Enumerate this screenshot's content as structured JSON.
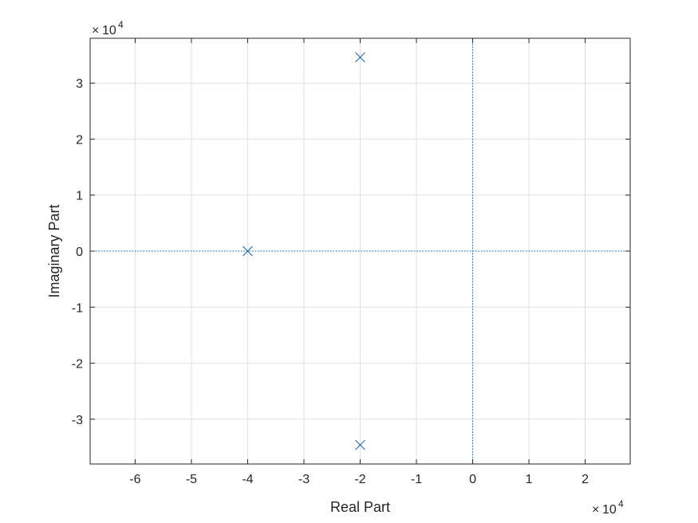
{
  "chart_data": {
    "type": "scatter",
    "title": "",
    "xlabel": "Real Part",
    "ylabel": "Imaginary Part",
    "x_exponent_label": {
      "times": "×",
      "base": "10",
      "power": "4"
    },
    "y_exponent_label": {
      "times": "×",
      "base": "10",
      "power": "4"
    },
    "xlim": [
      -6.8,
      2.8
    ],
    "ylim": [
      -3.8,
      3.8
    ],
    "x_ticks": [
      -6,
      -5,
      -4,
      -3,
      -2,
      -1,
      0,
      1,
      2
    ],
    "y_ticks": [
      -3,
      -2,
      -1,
      0,
      1,
      2,
      3
    ],
    "x_tick_labels": [
      "-6",
      "-5",
      "-4",
      "-3",
      "-2",
      "-1",
      "0",
      "1",
      "2"
    ],
    "y_tick_labels": [
      "-3",
      "-2",
      "-1",
      "0",
      "1",
      "2",
      "3"
    ],
    "grid": true,
    "scale_factor": 10000,
    "reference_lines": {
      "x": 0,
      "y": 0,
      "style": "dotted"
    },
    "series": [
      {
        "marker": "x",
        "points": [
          {
            "x": -2.0,
            "y": 3.46
          },
          {
            "x": -4.0,
            "y": 0.0
          },
          {
            "x": -2.0,
            "y": -3.46
          }
        ]
      }
    ],
    "colors": {
      "marker": "#1f5fa0",
      "reference": "#0072bd",
      "grid": "#e0e0e0",
      "axis": "#262626"
    }
  }
}
